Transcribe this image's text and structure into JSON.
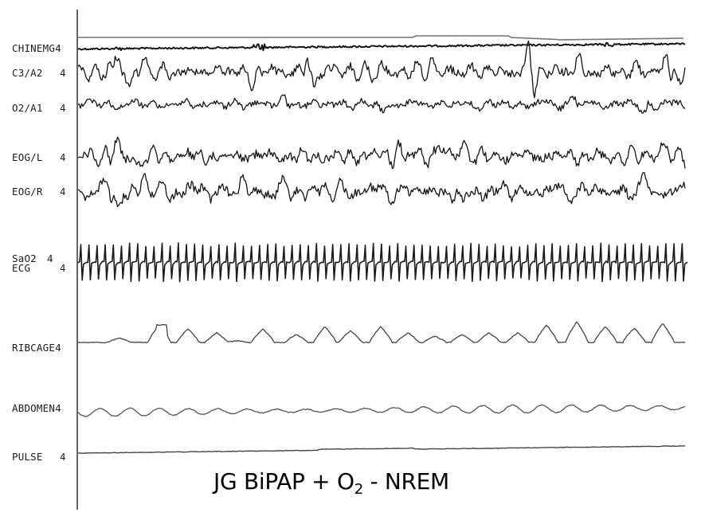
{
  "chart_data": {
    "type": "line",
    "title": "",
    "xlabel": "",
    "ylabel": "",
    "grid": false,
    "channels": [
      {
        "name": "CHINEMG",
        "gain": "4",
        "pattern": "emg"
      },
      {
        "name": "C3/A2",
        "gain": "4",
        "pattern": "eeg"
      },
      {
        "name": "O2/A1",
        "gain": "4",
        "pattern": "eeg"
      },
      {
        "name": "EOG/L",
        "gain": "4",
        "pattern": "eog"
      },
      {
        "name": "EOG/R",
        "gain": "4",
        "pattern": "eog"
      },
      {
        "name": "SaO2",
        "gain": "4",
        "pattern": "flat"
      },
      {
        "name": "ECG",
        "gain": "4",
        "pattern": "ecg"
      },
      {
        "name": "RIBCAGE",
        "gain": "4",
        "pattern": "resp"
      },
      {
        "name": "ABDOMEN",
        "gain": "4",
        "pattern": "resp-small"
      },
      {
        "name": "PULSE",
        "gain": "4",
        "pattern": "slow"
      }
    ],
    "annotation": {
      "pre": "JG BiPAP + O",
      "sub": "2",
      "post": " - NREM"
    }
  }
}
